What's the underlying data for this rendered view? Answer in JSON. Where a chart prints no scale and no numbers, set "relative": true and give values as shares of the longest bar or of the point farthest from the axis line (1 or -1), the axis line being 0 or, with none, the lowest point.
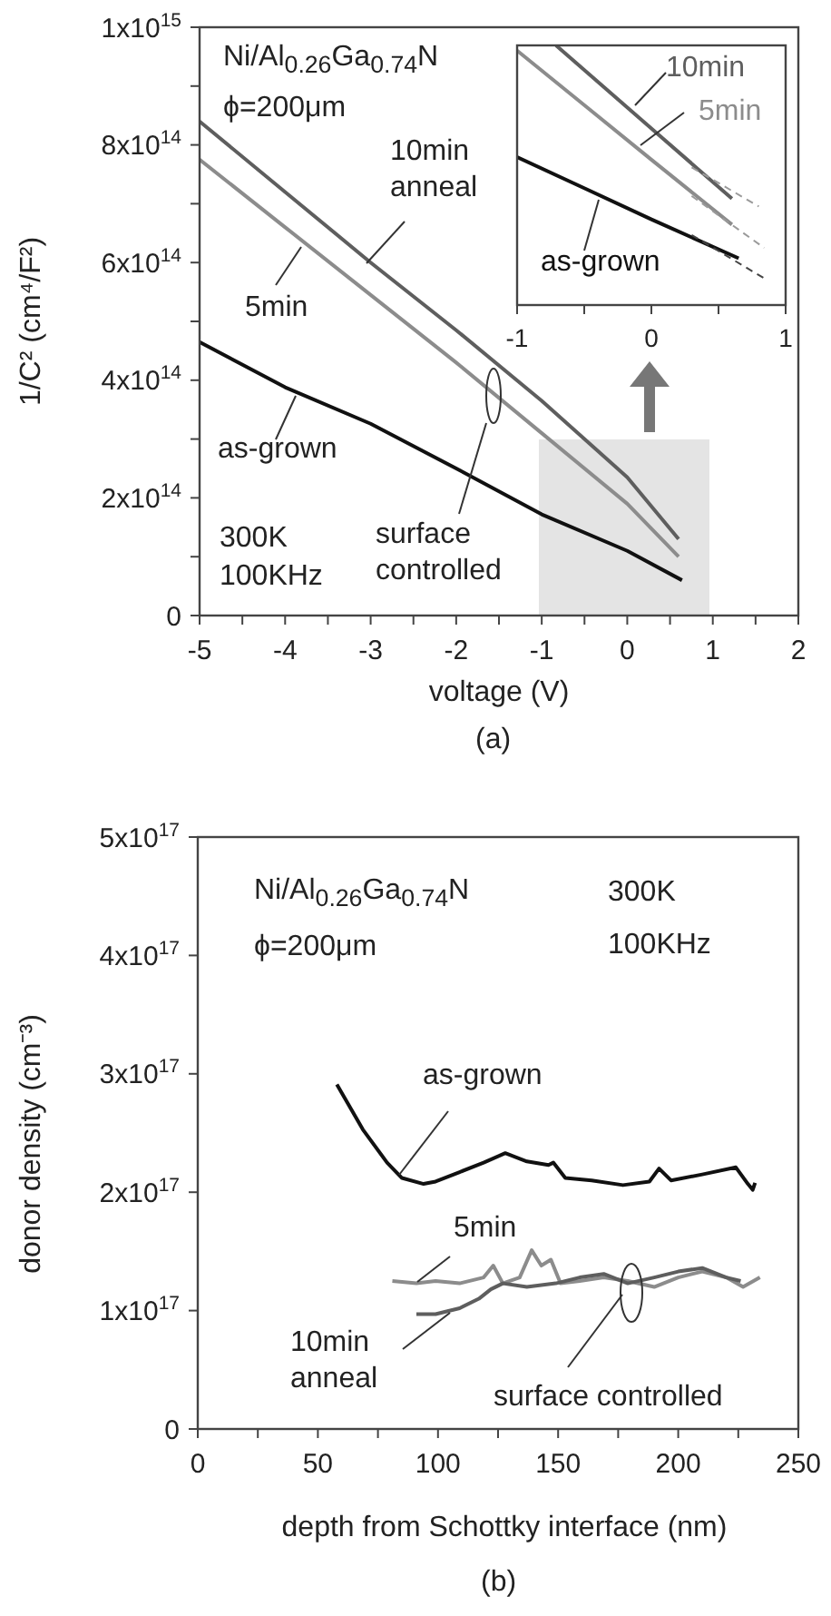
{
  "chart_data": [
    {
      "type": "line",
      "xlabel": "voltage (V)",
      "ylabel": "1/C² (cm⁴/F²)",
      "xlim": [
        -5,
        2
      ],
      "ylim": [
        0,
        1000000000000000.0
      ],
      "xticks": [
        -5,
        {
          "value": -4.5,
          "label": null
        },
        -4,
        {
          "value": -3.5,
          "label": null
        },
        -3,
        {
          "value": -2.5,
          "label": null
        },
        -2,
        {
          "value": -1.5,
          "label": null
        },
        -1,
        {
          "value": -0.5,
          "label": null
        },
        0,
        {
          "value": 0.5,
          "label": null
        },
        1,
        {
          "value": 1.5,
          "label": null
        },
        2
      ],
      "yticks": [
        0,
        {
          "value": 100000000000000.0,
          "label": null
        },
        {
          "value": 200000000000000.0,
          "label": "2x10$^{14}$"
        },
        {
          "value": 300000000000000.0,
          "label": null
        },
        {
          "value": 400000000000000.0,
          "label": "4x10$^{14}$"
        },
        {
          "value": 500000000000000.0,
          "label": null
        },
        {
          "value": 600000000000000.0,
          "label": "6x10$^{14}$"
        },
        {
          "value": 700000000000000.0,
          "label": null
        },
        {
          "value": 800000000000000.0,
          "label": "8x10$^{14}$"
        },
        {
          "value": 900000000000000.0,
          "label": null
        },
        {
          "value": 1000000000000000.0,
          "label": "1x10$^{15}$"
        }
      ],
      "series": [
        {
          "name": "10min anneal",
          "color": "#5e5e5e",
          "x": [
            -5,
            -4,
            -3,
            -2,
            -1,
            0,
            0.6
          ],
          "values": [
            840000000000000.0,
            720000000000000.0,
            600000000000000.0,
            485000000000000.0,
            365000000000000.0,
            235000000000000.0,
            130000000000000.0
          ]
        },
        {
          "name": "5min",
          "color": "#8c8c8c",
          "x": [
            -5,
            -4,
            -3,
            -2,
            -1,
            0,
            0.6
          ],
          "values": [
            775000000000000.0,
            660000000000000.0,
            545000000000000.0,
            430000000000000.0,
            310000000000000.0,
            190000000000000.0,
            100000000000000.0
          ]
        },
        {
          "name": "as-grown",
          "color": "#111111",
          "x": [
            -5,
            -4,
            -3,
            -2,
            -1,
            0,
            0.64
          ],
          "values": [
            465000000000000.0,
            388000000000000.0,
            326000000000000.0,
            250000000000000.0,
            172000000000000.0,
            110000000000000.0,
            60000000000000.0
          ]
        }
      ],
      "annotations": [
        "Ni/Al$_{0.26}$Ga$_{0.74}$N",
        "ϕ=200μm",
        "300K",
        "100KHz",
        "surface controlled",
        "(a)"
      ]
    },
    {
      "type": "line",
      "relative": true,
      "xlim": [
        -1,
        1
      ],
      "xticks": [
        -1,
        {
          "value": -0.5,
          "label": null
        },
        0,
        {
          "value": 0.5,
          "label": null
        },
        1
      ],
      "series": [
        {
          "name": "10min",
          "color": "#5e5e5e",
          "x": [
            -0.71,
            0,
            0.6
          ],
          "values": [
            1.0,
            0.68,
            0.41
          ]
        },
        {
          "name": "5min",
          "color": "#8c8c8c",
          "x": [
            -1,
            -0.5,
            0,
            0.6
          ],
          "values": [
            0.98,
            0.77,
            0.56,
            0.31
          ]
        },
        {
          "name": "as-grown",
          "color": "#111111",
          "x": [
            -1,
            -0.5,
            0,
            0.65
          ],
          "values": [
            0.57,
            0.45,
            0.33,
            0.18
          ]
        },
        {
          "color": "#9a9a9a",
          "line_style": "dashed",
          "x": [
            0.3,
            0.8
          ],
          "values": [
            0.53,
            0.38
          ]
        },
        {
          "color": "#9a9a9a",
          "line_style": "dashed",
          "x": [
            0.3,
            0.84
          ],
          "values": [
            0.42,
            0.22
          ]
        },
        {
          "color": "#444444",
          "line_style": "dashed",
          "x": [
            0.3,
            0.85
          ],
          "values": [
            0.27,
            0.1
          ]
        }
      ]
    },
    {
      "type": "line",
      "xlabel": "depth from Schottky interface (nm)",
      "ylabel": "donor density (cm⁻³)",
      "xlim": [
        0,
        250
      ],
      "ylim": [
        0,
        5e+17
      ],
      "xticks": [
        0,
        {
          "value": 25,
          "label": null
        },
        50,
        {
          "value": 75,
          "label": null
        },
        100,
        {
          "value": 125,
          "label": null
        },
        150,
        {
          "value": 175,
          "label": null
        },
        200,
        {
          "value": 225,
          "label": null
        },
        250
      ],
      "yticks": [
        0,
        {
          "value": 1e+17,
          "label": "1x10$^{17}$"
        },
        {
          "value": 2e+17,
          "label": "2x10$^{17}$"
        },
        {
          "value": 3e+17,
          "label": "3x10$^{17}$"
        },
        {
          "value": 4e+17,
          "label": "4x10$^{17}$"
        },
        {
          "value": 5e+17,
          "label": "5x10$^{17}$"
        }
      ],
      "series": [
        {
          "name": "as-grown",
          "color": "#111111",
          "x": [
            57.9,
            68.7,
            78.8,
            85,
            94,
            99,
            109,
            119,
            128,
            137,
            146,
            148,
            153,
            164,
            177,
            188,
            192,
            197,
            210,
            224,
            229,
            231,
            232
          ],
          "values": [
            2.91e+17,
            2.53e+17,
            2.25e+17,
            2.12e+17,
            2.07e+17,
            2.09e+17,
            2.17e+17,
            2.25e+17,
            2.33e+17,
            2.26e+17,
            2.23e+17,
            2.25e+17,
            2.12e+17,
            2.1e+17,
            2.06e+17,
            2.09e+17,
            2.2e+17,
            2.1e+17,
            2.15e+17,
            2.21e+17,
            2.07e+17,
            2.02e+17,
            2.08e+17
          ]
        },
        {
          "name": "5min",
          "color": "#8c8c8c",
          "x": [
            81,
            91,
            99,
            109,
            119,
            123,
            127,
            134,
            139,
            143,
            147,
            151,
            159,
            169,
            179,
            190,
            200,
            210,
            220,
            227,
            234
          ],
          "values": [
            1.25e+17,
            1.23e+17,
            1.25e+17,
            1.23e+17,
            1.28e+17,
            1.38e+17,
            1.23e+17,
            1.28e+17,
            1.51e+17,
            1.38e+17,
            1.43e+17,
            1.23e+17,
            1.25e+17,
            1.28e+17,
            1.25e+17,
            1.2e+17,
            1.28e+17,
            1.33e+17,
            1.28e+17,
            1.2e+17,
            1.28e+17
          ]
        },
        {
          "name": "10min anneal",
          "color": "#5e5e5e",
          "x": [
            91,
            99,
            109,
            117,
            122,
            127,
            137,
            149,
            159,
            169,
            179,
            190,
            200,
            210,
            220,
            226
          ],
          "values": [
            9.7e+16,
            9.7e+16,
            1.02e+17,
            1.1e+17,
            1.18e+17,
            1.23e+17,
            1.2e+17,
            1.23e+17,
            1.28e+17,
            1.31e+17,
            1.23e+17,
            1.28e+17,
            1.33e+17,
            1.36e+17,
            1.28e+17,
            1.25e+17
          ]
        }
      ],
      "annotations": [
        "Ni/Al$_{0.26}$Ga$_{0.74}$N",
        "ϕ=200μm",
        "300K",
        "100KHz",
        "surface controlled",
        "(b)"
      ]
    }
  ]
}
